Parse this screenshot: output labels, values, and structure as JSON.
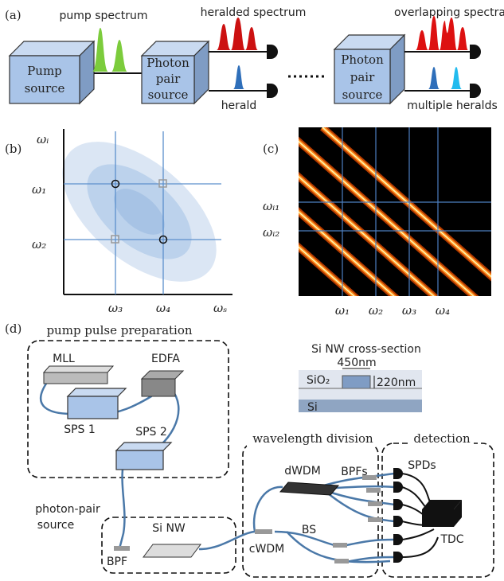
{
  "panel_a": {
    "label": "(a)",
    "pump_spectrum": "pump spectrum",
    "heralded_spectrum": "heralded spectrum",
    "overlapping_spectra": "overlapping spectra",
    "pump_source": [
      "Pump",
      "source"
    ],
    "photon_pair_source": [
      "Photon",
      "pair",
      "source"
    ],
    "photon_pair_source_2": [
      "Photon",
      "pair",
      "source"
    ],
    "herald": "herald",
    "multiple_heralds": "multiple heralds"
  },
  "panel_b": {
    "label": "(b)",
    "y_axis": "ωᵢ",
    "x_axis": "ωₛ",
    "y_ticks": [
      "ω₁",
      "ω₂"
    ],
    "x_ticks": [
      "ω₃",
      "ω₄"
    ]
  },
  "panel_c": {
    "label": "(c)",
    "y_ticks": [
      "ωᵢ₁",
      "ωᵢ₂"
    ],
    "x_ticks": [
      "ω₁",
      "ω₂",
      "ω₃",
      "ω₄"
    ]
  },
  "panel_d": {
    "label": "(d)",
    "pump_pulse_preparation": "pump pulse preparation",
    "mll": "MLL",
    "edfa": "EDFA",
    "sps1": "SPS 1",
    "sps2": "SPS 2",
    "cross_section": "Si NW cross-section",
    "width": "450nm",
    "height": "220nm",
    "sio2": "SiO₂",
    "si": "Si",
    "wavelength_division": "wavelength division",
    "detection": "detection",
    "dwdm": "dWDM",
    "bpfs": "BPFs",
    "spds": "SPDs",
    "tdc": "TDC",
    "bs": "BS",
    "cwdm": "cWDM",
    "photon_pair_source": [
      "photon-pair",
      "source"
    ],
    "bpf": "BPF",
    "si_nw": "Si NW"
  }
}
